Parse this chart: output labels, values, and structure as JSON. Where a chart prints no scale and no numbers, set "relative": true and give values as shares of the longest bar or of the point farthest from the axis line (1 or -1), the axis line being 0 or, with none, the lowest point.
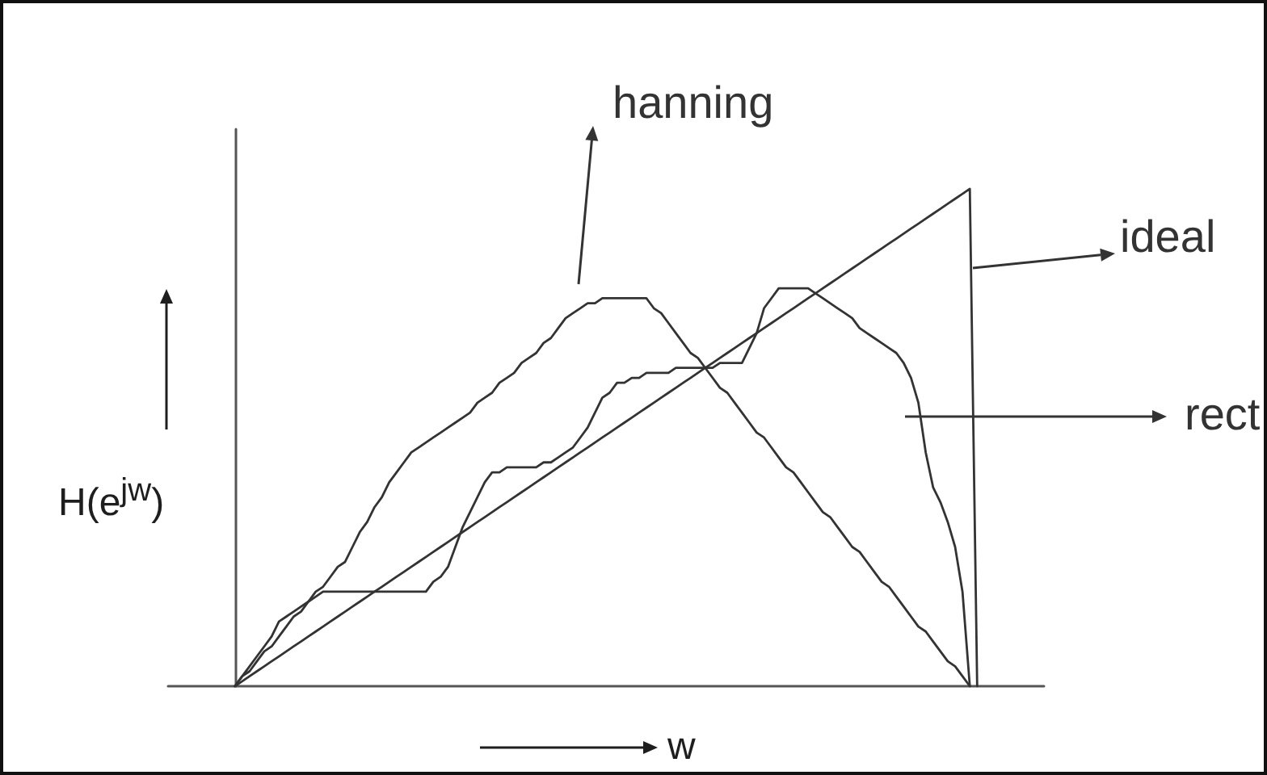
{
  "chart_data": {
    "type": "line",
    "relative": true,
    "xlabel": "w",
    "ylabel": "H(e$^{jw}$)",
    "legend": "top right",
    "grid": false,
    "marker": "none",
    "line_style": "solid",
    "categories": [
      null,
      null,
      null,
      null,
      null,
      null,
      null,
      null,
      null,
      null,
      null,
      null,
      null,
      null,
      null,
      null,
      null,
      null,
      null,
      null,
      null,
      null,
      null,
      null,
      null,
      null,
      null,
      null,
      null,
      null,
      null,
      null,
      null,
      null,
      null,
      null,
      null,
      null,
      null,
      null,
      null,
      null,
      null,
      null,
      null,
      null,
      null,
      null,
      null,
      null,
      null,
      null,
      null,
      null,
      null,
      null,
      null,
      null,
      null,
      null,
      null,
      null,
      null,
      null,
      null,
      null,
      null,
      null,
      null,
      null,
      null,
      null,
      null,
      null,
      null,
      null,
      null,
      null,
      null,
      null,
      null,
      null,
      null,
      null,
      null,
      null,
      null,
      null,
      null,
      null,
      null,
      null,
      null,
      null,
      null,
      null,
      null,
      null,
      null,
      null,
      null,
      null
    ],
    "series": [
      {
        "name": "ideal",
        "color": "#333333",
        "values": [
          0,
          0.01,
          0.02,
          0.03,
          0.04,
          0.05,
          0.06,
          0.07,
          0.08,
          0.09,
          0.1,
          0.11,
          0.12,
          0.13,
          0.14,
          0.15,
          0.16,
          0.17,
          0.18,
          0.19,
          0.2,
          0.21,
          0.22,
          0.23,
          0.24,
          0.25,
          0.26,
          0.27,
          0.28,
          0.29,
          0.3,
          0.31,
          0.32,
          0.33,
          0.34,
          0.35,
          0.36,
          0.37,
          0.38,
          0.39,
          0.4,
          0.41,
          0.42,
          0.43,
          0.44,
          0.45,
          0.46,
          0.47,
          0.48,
          0.49,
          0.5,
          0.51,
          0.52,
          0.53,
          0.54,
          0.55,
          0.56,
          0.57,
          0.58,
          0.59,
          0.6,
          0.61,
          0.62,
          0.63,
          0.64,
          0.65,
          0.66,
          0.67,
          0.68,
          0.69,
          0.7,
          0.71,
          0.72,
          0.73,
          0.74,
          0.75,
          0.76,
          0.77,
          0.78,
          0.79,
          0.8,
          0.81,
          0.82,
          0.83,
          0.84,
          0.85,
          0.86,
          0.87,
          0.88,
          0.89,
          0.9,
          0.91,
          0.92,
          0.93,
          0.94,
          0.95,
          0.96,
          0.97,
          0.98,
          0.99,
          1,
          0
        ]
      },
      {
        "name": "hanning",
        "color": "#333333",
        "values": [
          0,
          0.02,
          0.03,
          0.05,
          0.07,
          0.08,
          0.1,
          0.12,
          0.14,
          0.15,
          0.17,
          0.19,
          0.2,
          0.22,
          0.24,
          0.25,
          0.28,
          0.31,
          0.33,
          0.36,
          0.38,
          0.41,
          0.43,
          0.45,
          0.47,
          0.48,
          0.49,
          0.5,
          0.51,
          0.52,
          0.53,
          0.54,
          0.55,
          0.57,
          0.58,
          0.59,
          0.61,
          0.62,
          0.63,
          0.65,
          0.66,
          0.67,
          0.69,
          0.7,
          0.72,
          0.74,
          0.75,
          0.76,
          0.77,
          0.77,
          0.78,
          0.78,
          0.78,
          0.78,
          0.78,
          0.78,
          0.78,
          0.76,
          0.75,
          0.73,
          0.71,
          0.69,
          0.67,
          0.66,
          0.64,
          0.62,
          0.6,
          0.59,
          0.57,
          0.55,
          0.53,
          0.51,
          0.5,
          0.48,
          0.46,
          0.44,
          0.43,
          0.41,
          0.39,
          0.37,
          0.35,
          0.34,
          0.32,
          0.3,
          0.28,
          0.27,
          0.25,
          0.23,
          0.21,
          0.2,
          0.18,
          0.16,
          0.14,
          0.12,
          0.11,
          0.09,
          0.07,
          0.05,
          0.04,
          0.02,
          0,
          null
        ]
      },
      {
        "name": "rect",
        "color": "#333333",
        "values": [
          0,
          0.02,
          0.04,
          0.06,
          0.08,
          0.1,
          0.13,
          0.14,
          0.15,
          0.16,
          0.17,
          0.18,
          0.19,
          0.19,
          0.19,
          0.19,
          0.19,
          0.19,
          0.19,
          0.19,
          0.19,
          0.19,
          0.19,
          0.19,
          0.19,
          0.19,
          0.19,
          0.21,
          0.22,
          0.24,
          0.28,
          0.32,
          0.35,
          0.38,
          0.41,
          0.43,
          0.43,
          0.44,
          0.44,
          0.44,
          0.44,
          0.44,
          0.45,
          0.45,
          0.46,
          0.47,
          0.48,
          0.5,
          0.52,
          0.55,
          0.58,
          0.59,
          0.61,
          0.61,
          0.62,
          0.62,
          0.63,
          0.63,
          0.63,
          0.63,
          0.64,
          0.64,
          0.64,
          0.64,
          0.64,
          0.64,
          0.65,
          0.65,
          0.65,
          0.65,
          0.68,
          0.71,
          0.76,
          0.78,
          0.8,
          0.8,
          0.8,
          0.8,
          0.8,
          0.79,
          0.78,
          0.77,
          0.76,
          0.75,
          0.74,
          0.72,
          0.71,
          0.7,
          0.69,
          0.68,
          0.67,
          0.65,
          0.62,
          0.57,
          0.47,
          0.4,
          0.37,
          0.33,
          0.28,
          0.19,
          0,
          null
        ]
      }
    ]
  }
}
